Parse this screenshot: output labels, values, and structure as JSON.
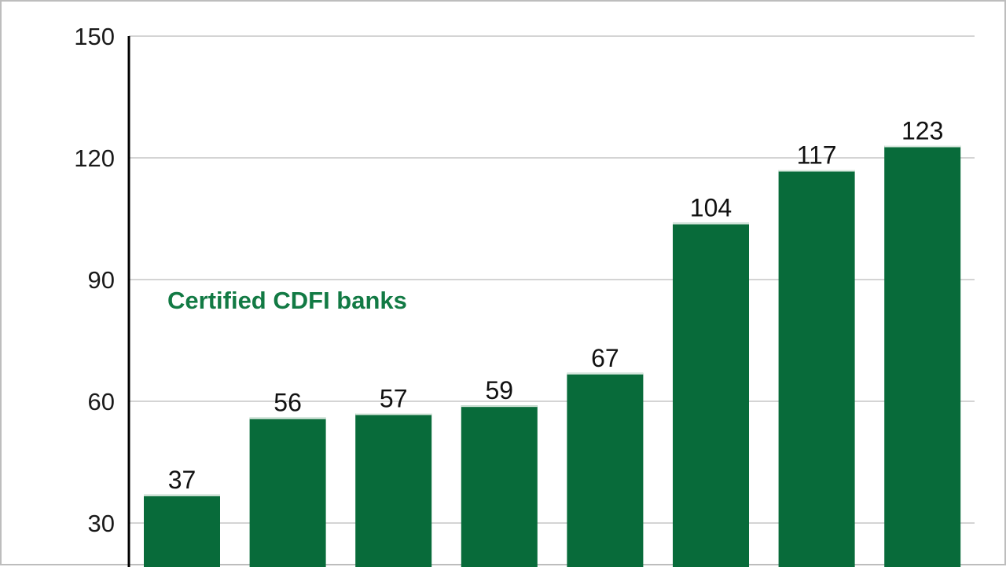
{
  "chart_data": {
    "type": "bar",
    "series": [
      {
        "name": "Certified CDFI banks",
        "values": [
          37,
          56,
          57,
          59,
          67,
          104,
          117,
          123
        ]
      }
    ],
    "categories": [
      "",
      "",
      "",
      "",
      "",
      "",
      "",
      ""
    ],
    "ylim": [
      0,
      150
    ],
    "yticks": [
      30,
      60,
      90,
      120,
      150
    ],
    "grid": true,
    "data_labels": true,
    "colors": {
      "bar": "#086b3a",
      "series_label": "#127a44",
      "grid": "#d4d4d4",
      "axis": "#000000"
    }
  }
}
